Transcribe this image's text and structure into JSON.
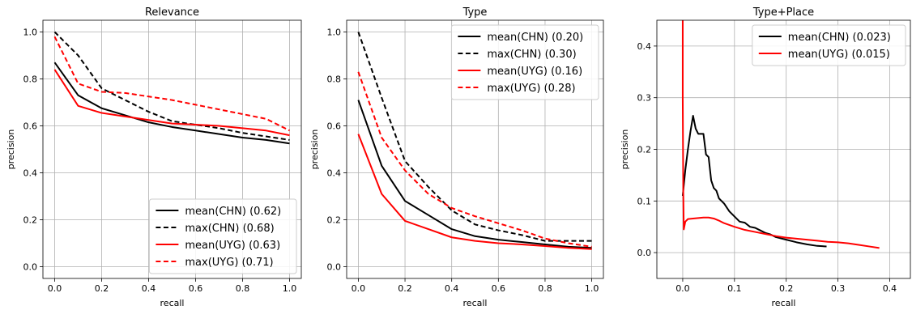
{
  "chart_data": [
    {
      "type": "line",
      "title": "Relevance",
      "xlabel": "recall",
      "ylabel": "precision",
      "xlim": [
        -0.05,
        1.05
      ],
      "ylim": [
        -0.05,
        1.05
      ],
      "xticks": [
        0.0,
        0.2,
        0.4,
        0.6,
        0.8,
        1.0
      ],
      "yticks": [
        0.0,
        0.2,
        0.4,
        0.6,
        0.8,
        1.0
      ],
      "xtick_labels": [
        "0.0",
        "0.2",
        "0.4",
        "0.6",
        "0.8",
        "1.0"
      ],
      "ytick_labels": [
        "0.0",
        "0.2",
        "0.4",
        "0.6",
        "0.8",
        "1.0"
      ],
      "grid": true,
      "legend_position": "lower-right",
      "series": [
        {
          "name": "mean(CHN) (0.62)",
          "color": "#000000",
          "dash": "solid",
          "x": [
            0.0,
            0.1,
            0.2,
            0.3,
            0.4,
            0.5,
            0.6,
            0.7,
            0.8,
            0.9,
            1.0
          ],
          "y": [
            0.87,
            0.73,
            0.675,
            0.645,
            0.615,
            0.595,
            0.58,
            0.565,
            0.55,
            0.54,
            0.525
          ]
        },
        {
          "name": "max(CHN) (0.68)",
          "color": "#000000",
          "dash": "dashed",
          "x": [
            0.0,
            0.1,
            0.2,
            0.3,
            0.4,
            0.5,
            0.6,
            0.7,
            0.8,
            0.9,
            1.0
          ],
          "y": [
            1.0,
            0.9,
            0.76,
            0.71,
            0.66,
            0.62,
            0.605,
            0.59,
            0.57,
            0.555,
            0.54
          ]
        },
        {
          "name": "mean(UYG) (0.63)",
          "color": "#ff0000",
          "dash": "solid",
          "x": [
            0.0,
            0.1,
            0.2,
            0.3,
            0.4,
            0.5,
            0.6,
            0.7,
            0.8,
            0.9,
            1.0
          ],
          "y": [
            0.84,
            0.685,
            0.655,
            0.64,
            0.625,
            0.61,
            0.605,
            0.6,
            0.59,
            0.58,
            0.56
          ]
        },
        {
          "name": "max(UYG) (0.71)",
          "color": "#ff0000",
          "dash": "dashed",
          "x": [
            0.0,
            0.1,
            0.2,
            0.3,
            0.4,
            0.5,
            0.6,
            0.7,
            0.8,
            0.9,
            1.0
          ],
          "y": [
            0.98,
            0.78,
            0.745,
            0.74,
            0.725,
            0.71,
            0.69,
            0.67,
            0.65,
            0.63,
            0.58
          ]
        }
      ]
    },
    {
      "type": "line",
      "title": "Type",
      "xlabel": "recall",
      "ylabel": "precision",
      "xlim": [
        -0.05,
        1.05
      ],
      "ylim": [
        -0.05,
        1.05
      ],
      "xticks": [
        0.0,
        0.2,
        0.4,
        0.6,
        0.8,
        1.0
      ],
      "yticks": [
        0.0,
        0.2,
        0.4,
        0.6,
        0.8,
        1.0
      ],
      "xtick_labels": [
        "0.0",
        "0.2",
        "0.4",
        "0.6",
        "0.8",
        "1.0"
      ],
      "ytick_labels": [
        "0.0",
        "0.2",
        "0.4",
        "0.6",
        "0.8",
        "1.0"
      ],
      "grid": true,
      "legend_position": "upper-right",
      "series": [
        {
          "name": "mean(CHN) (0.20)",
          "color": "#000000",
          "dash": "solid",
          "x": [
            0.0,
            0.1,
            0.2,
            0.3,
            0.4,
            0.5,
            0.6,
            0.7,
            0.8,
            0.9,
            1.0
          ],
          "y": [
            0.71,
            0.43,
            0.28,
            0.22,
            0.16,
            0.13,
            0.115,
            0.105,
            0.095,
            0.085,
            0.08
          ]
        },
        {
          "name": "max(CHN) (0.30)",
          "color": "#000000",
          "dash": "dashed",
          "x": [
            0.0,
            0.1,
            0.2,
            0.3,
            0.4,
            0.5,
            0.6,
            0.7,
            0.8,
            0.9,
            1.0
          ],
          "y": [
            1.0,
            0.72,
            0.45,
            0.34,
            0.24,
            0.18,
            0.155,
            0.135,
            0.11,
            0.11,
            0.11
          ]
        },
        {
          "name": "mean(UYG) (0.16)",
          "color": "#ff0000",
          "dash": "solid",
          "x": [
            0.0,
            0.1,
            0.2,
            0.3,
            0.4,
            0.5,
            0.6,
            0.7,
            0.8,
            0.9,
            1.0
          ],
          "y": [
            0.565,
            0.31,
            0.195,
            0.16,
            0.125,
            0.11,
            0.1,
            0.095,
            0.088,
            0.08,
            0.075
          ]
        },
        {
          "name": "max(UYG) (0.28)",
          "color": "#ff0000",
          "dash": "dashed",
          "x": [
            0.0,
            0.1,
            0.2,
            0.3,
            0.4,
            0.5,
            0.6,
            0.7,
            0.8,
            0.9,
            1.0
          ],
          "y": [
            0.83,
            0.55,
            0.41,
            0.31,
            0.25,
            0.215,
            0.185,
            0.155,
            0.12,
            0.1,
            0.085
          ]
        }
      ]
    },
    {
      "type": "line",
      "title": "Type+Place",
      "xlabel": "recall",
      "ylabel": "precision",
      "xlim": [
        -0.05,
        0.44
      ],
      "ylim": [
        -0.05,
        0.45
      ],
      "xticks": [
        0.0,
        0.1,
        0.2,
        0.3,
        0.4
      ],
      "yticks": [
        0.0,
        0.1,
        0.2,
        0.3,
        0.4
      ],
      "xtick_labels": [
        "0.0",
        "0.1",
        "0.2",
        "0.3",
        "0.4"
      ],
      "ytick_labels": [
        "0.0",
        "0.1",
        "0.2",
        "0.3",
        "0.4"
      ],
      "grid": true,
      "legend_position": "upper-right",
      "series": [
        {
          "name": "mean(CHN) (0.023)",
          "color": "#000000",
          "dash": "solid",
          "x": [
            0.0,
            0.005,
            0.01,
            0.015,
            0.02,
            0.025,
            0.03,
            0.035,
            0.04,
            0.045,
            0.05,
            0.055,
            0.06,
            0.065,
            0.07,
            0.075,
            0.08,
            0.09,
            0.1,
            0.11,
            0.12,
            0.13,
            0.14,
            0.15,
            0.16,
            0.17,
            0.18,
            0.2,
            0.22,
            0.24,
            0.26,
            0.278
          ],
          "y": [
            0.11,
            0.16,
            0.2,
            0.235,
            0.265,
            0.24,
            0.23,
            0.23,
            0.23,
            0.19,
            0.185,
            0.14,
            0.125,
            0.12,
            0.105,
            0.1,
            0.095,
            0.08,
            0.07,
            0.06,
            0.058,
            0.05,
            0.048,
            0.043,
            0.038,
            0.035,
            0.03,
            0.025,
            0.02,
            0.016,
            0.013,
            0.012
          ]
        },
        {
          "name": "mean(UYG) (0.015)",
          "color": "#ff0000",
          "dash": "solid",
          "x": [
            0.0,
            0.0,
            0.001,
            0.002,
            0.005,
            0.01,
            0.02,
            0.03,
            0.04,
            0.05,
            0.06,
            0.07,
            0.08,
            0.1,
            0.12,
            0.14,
            0.16,
            0.18,
            0.2,
            0.22,
            0.24,
            0.26,
            0.28,
            0.3,
            0.32,
            0.34,
            0.36,
            0.38
          ],
          "y": [
            0.45,
            0.3,
            0.12,
            0.045,
            0.06,
            0.065,
            0.066,
            0.067,
            0.068,
            0.068,
            0.066,
            0.062,
            0.057,
            0.05,
            0.044,
            0.04,
            0.036,
            0.032,
            0.029,
            0.027,
            0.025,
            0.023,
            0.021,
            0.02,
            0.018,
            0.015,
            0.012,
            0.009
          ]
        }
      ]
    }
  ]
}
